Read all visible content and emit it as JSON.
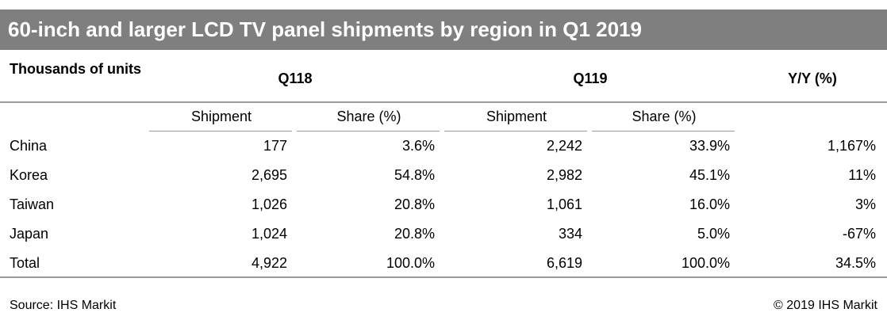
{
  "title": "60-inch and larger LCD TV panel shipments by region in Q1 2019",
  "header": {
    "label": "Thousands of units",
    "q118": "Q118",
    "q119": "Q119",
    "yy": "Y/Y (%)"
  },
  "subheaders": {
    "q118_shipment": "Shipment",
    "q118_share": "Share (%)",
    "q119_shipment": "Shipment",
    "q119_share": "Share (%)"
  },
  "rows": [
    {
      "region": "China",
      "q118_shipment": "177",
      "q118_share": "3.6%",
      "q119_shipment": "2,242",
      "q119_share": "33.9%",
      "yy": "1,167%"
    },
    {
      "region": "Korea",
      "q118_shipment": "2,695",
      "q118_share": "54.8%",
      "q119_shipment": "2,982",
      "q119_share": "45.1%",
      "yy": "11%"
    },
    {
      "region": "Taiwan",
      "q118_shipment": "1,026",
      "q118_share": "20.8%",
      "q119_shipment": "1,061",
      "q119_share": "16.0%",
      "yy": "3%"
    },
    {
      "region": "Japan",
      "q118_shipment": "1,024",
      "q118_share": "20.8%",
      "q119_shipment": "334",
      "q119_share": "5.0%",
      "yy": "-67%"
    },
    {
      "region": "Total",
      "q118_shipment": "4,922",
      "q118_share": "100.0%",
      "q119_shipment": "6,619",
      "q119_share": "100.0%",
      "yy": "34.5%"
    }
  ],
  "footer": {
    "source": "Source: IHS Markit",
    "copyright": "© 2019 IHS Markit"
  },
  "colors": {
    "title_bar": "#7f7f7f",
    "title_text": "#ffffff",
    "rules": "#9a9a9a"
  }
}
